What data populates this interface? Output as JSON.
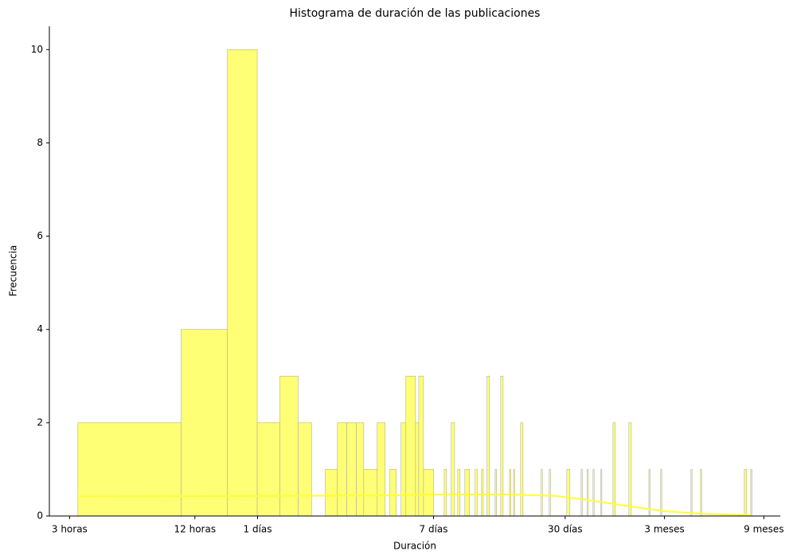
{
  "chart_data": {
    "type": "histogram",
    "title": "Histograma de duración de las publicaciones",
    "x_label": "Duración",
    "y_label": "Frecuencia",
    "x_scale": "log",
    "color": "#ffff66",
    "edgecolor": "#b0b0a0",
    "bins": [
      3.29,
      10.3,
      17.2,
      23.9,
      30.7,
      37.6,
      43.6,
      50.8,
      58.0,
      64.3,
      71.5,
      77.6,
      90.1,
      98.3,
      103.6,
      111.3,
      117.3,
      123.7,
      137.6,
      142.6,
      150.3,
      168,
      188.9,
      193.8,
      204.3,
      211.9,
      219.4,
      225.1,
      237.4,
      250.1,
      266,
      272,
      285.7,
      291,
      303.6,
      312,
      331.9,
      337,
      352.8,
      362.4,
      389.1,
      395,
      406.6,
      412,
      439.8,
      451.7,
      552,
      560,
      603.6,
      612,
      733,
      758.9,
      859,
      870,
      920,
      930,
      980,
      992,
      1069,
      1080,
      1222,
      1254,
      1456,
      1496,
      1817,
      1840,
      2071,
      2095,
      2892,
      2930,
      3216,
      3260,
      5222,
      5362,
      5604,
      5680
    ],
    "counts": [
      2,
      4,
      10,
      2,
      3,
      2,
      0,
      1,
      2,
      2,
      2,
      1,
      2,
      0,
      1,
      0,
      2,
      3,
      2,
      3,
      1,
      0,
      1,
      0,
      2,
      0,
      1,
      0,
      1,
      0,
      1,
      0,
      1,
      0,
      3,
      0,
      1,
      0,
      3,
      0,
      1,
      0,
      1,
      0,
      2,
      0,
      1,
      0,
      1,
      0,
      1,
      0,
      1,
      0,
      1,
      0,
      1,
      0,
      1,
      0,
      2,
      0,
      2,
      0,
      1,
      0,
      1,
      0,
      1,
      0,
      1,
      0,
      1,
      0,
      1
    ],
    "kde": {
      "color": "#ffff33",
      "x": [
        3.29,
        24,
        100,
        168,
        400,
        650,
        900,
        1500,
        2200,
        3500,
        5600
      ],
      "y": [
        0.42,
        0.43,
        0.44,
        0.46,
        0.46,
        0.43,
        0.35,
        0.2,
        0.1,
        0.04,
        0.02
      ]
    },
    "xlim": [
      2.4,
      7770
    ],
    "xticks": [
      {
        "value": 3,
        "label": "3 horas"
      },
      {
        "value": 12,
        "label": "12 horas"
      },
      {
        "value": 24,
        "label": "1 días"
      },
      {
        "value": 168,
        "label": "7 días"
      },
      {
        "value": 720,
        "label": "30 días"
      },
      {
        "value": 2160,
        "label": "3 meses"
      },
      {
        "value": 6480,
        "label": "9 meses"
      }
    ],
    "ylim": [
      0,
      10.5
    ],
    "yticks": [
      0,
      2,
      4,
      6,
      8,
      10
    ]
  }
}
